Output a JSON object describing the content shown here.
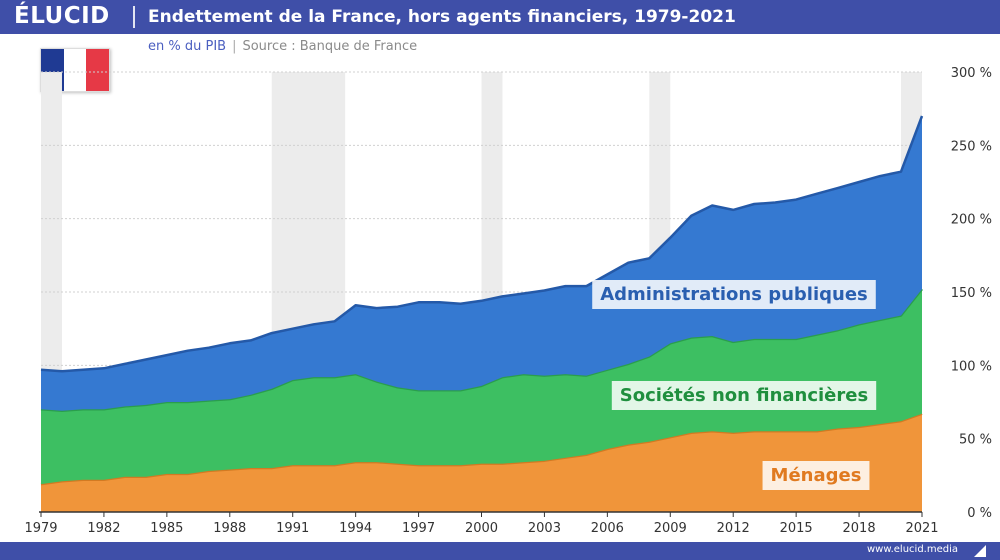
{
  "header": {
    "brand": "ÉLUCID",
    "title": "Endettement de la France, hors agents financiers, 1979-2021"
  },
  "subtitle": {
    "unit": "en % du PIB",
    "source": "Source : Banque de France"
  },
  "flag": {
    "colors": [
      "#1f3a93",
      "#ffffff",
      "#e63946"
    ]
  },
  "footer": {
    "site": "www.elucid.media"
  },
  "colors": {
    "header": "#3f4fa8",
    "menages": "#f0953a",
    "snf": "#3dbf62",
    "apu": "#3579d1",
    "shade": "#ececec",
    "grid": "#d0d0d0"
  },
  "chart_data": {
    "type": "area",
    "stacked": true,
    "x": [
      1979,
      1980,
      1981,
      1982,
      1983,
      1984,
      1985,
      1986,
      1987,
      1988,
      1989,
      1990,
      1991,
      1992,
      1993,
      1994,
      1995,
      1996,
      1997,
      1998,
      1999,
      2000,
      2001,
      2002,
      2003,
      2004,
      2005,
      2006,
      2007,
      2008,
      2009,
      2010,
      2011,
      2012,
      2013,
      2014,
      2015,
      2016,
      2017,
      2018,
      2019,
      2020,
      2021
    ],
    "series": [
      {
        "name": "Ménages",
        "color": "#f0953a",
        "values": [
          19,
          21,
          22,
          22,
          24,
          24,
          26,
          26,
          28,
          29,
          30,
          30,
          32,
          32,
          32,
          34,
          34,
          33,
          32,
          32,
          32,
          33,
          33,
          34,
          35,
          37,
          39,
          43,
          46,
          48,
          51,
          54,
          55,
          54,
          55,
          55,
          55,
          55,
          57,
          58,
          60,
          62,
          67
        ]
      },
      {
        "name": "Sociétés non financières",
        "color": "#3dbf62",
        "values": [
          51,
          48,
          48,
          48,
          48,
          49,
          49,
          49,
          48,
          48,
          50,
          54,
          58,
          60,
          60,
          60,
          55,
          52,
          51,
          51,
          51,
          53,
          59,
          60,
          58,
          57,
          54,
          54,
          55,
          58,
          64,
          65,
          65,
          62,
          63,
          63,
          63,
          66,
          67,
          70,
          71,
          72,
          85
        ]
      },
      {
        "name": "Administrations publiques",
        "color": "#3579d1",
        "values": [
          27,
          27,
          27,
          28,
          29,
          31,
          32,
          35,
          36,
          38,
          37,
          38,
          35,
          36,
          38,
          47,
          50,
          55,
          60,
          60,
          59,
          58,
          55,
          55,
          58,
          60,
          61,
          65,
          69,
          67,
          72,
          83,
          89,
          90,
          92,
          93,
          95,
          96,
          97,
          97,
          98,
          98,
          118
        ]
      }
    ],
    "labels": {
      "Ménages": "Ménages",
      "Sociétés non financières": "Sociétés non financières",
      "Administrations publiques": "Administrations publiques"
    },
    "ylim": [
      0,
      300
    ],
    "yticks": [
      0,
      50,
      100,
      150,
      200,
      250,
      300
    ],
    "ytick_labels": [
      "0 %",
      "50 %",
      "100 %",
      "150 %",
      "200 %",
      "250 %",
      "300 %"
    ],
    "xticks": [
      1979,
      1982,
      1985,
      1988,
      1991,
      1994,
      1997,
      2000,
      2003,
      2006,
      2009,
      2012,
      2015,
      2018,
      2021
    ],
    "xtick_labels": [
      "1979",
      "1982",
      "1985",
      "1988",
      "1991",
      "1994",
      "1997",
      "2000",
      "2003",
      "2006",
      "2009",
      "2012",
      "2015",
      "2018",
      "2021"
    ],
    "shaded_periods": [
      [
        1979,
        1980
      ],
      [
        1990,
        1993.5
      ],
      [
        2000,
        2001
      ],
      [
        2008,
        2009
      ],
      [
        2020,
        2021
      ]
    ],
    "grid": true
  }
}
